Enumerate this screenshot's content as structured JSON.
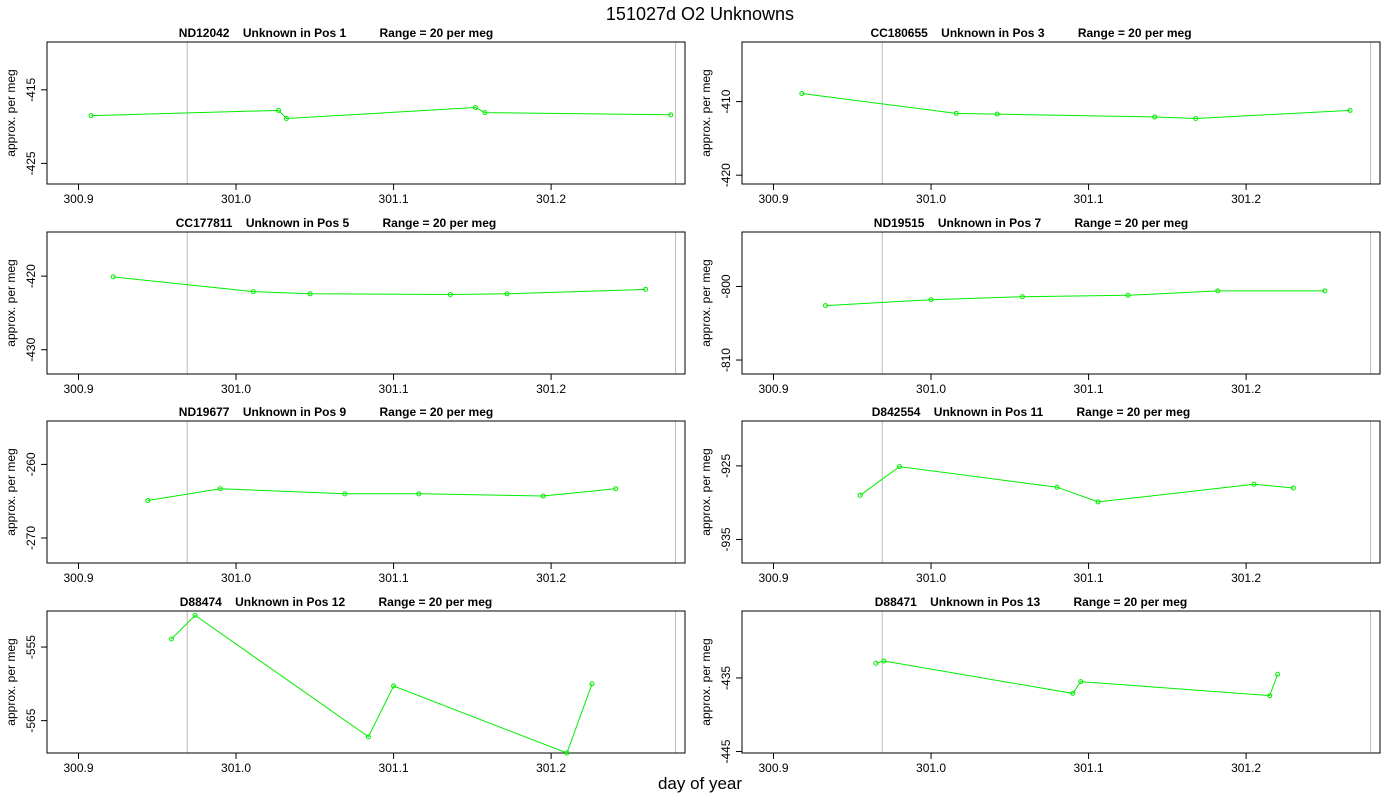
{
  "title": "151027d  O2 Unknowns",
  "xlabel": "day of year",
  "colors": {
    "series": "#00ee00",
    "vline": "#bdbdbd",
    "axis": "#000000"
  },
  "chart_data": [
    {
      "type": "line",
      "title": "ND12042    Unknown in Pos 1          Range = 20 per meg",
      "ylabel": "approx. per meg",
      "xlim": [
        300.88,
        301.285
      ],
      "ylim": [
        -427.8,
        -408.5
      ],
      "xticks": [
        "300.9",
        "301.0",
        "301.1",
        "301.2"
      ],
      "yticks": [
        "-415",
        "-425"
      ],
      "vlines": [
        300.969,
        301.279
      ],
      "x": [
        300.908,
        301.027,
        301.032,
        301.152,
        301.158,
        301.276
      ],
      "y": [
        -418.5,
        -417.8,
        -418.9,
        -417.4,
        -418.1,
        -418.4
      ]
    },
    {
      "type": "line",
      "title": "CC180655    Unknown in Pos 3          Range = 20 per meg",
      "ylabel": "approx. per meg",
      "xlim": [
        300.88,
        301.285
      ],
      "ylim": [
        -421.2,
        -401.9
      ],
      "xticks": [
        "300.9",
        "301.0",
        "301.1",
        "301.2"
      ],
      "yticks": [
        "-410",
        "-420"
      ],
      "vlines": [
        300.969,
        301.279
      ],
      "x": [
        300.918,
        301.016,
        301.042,
        301.142,
        301.168,
        301.266
      ],
      "y": [
        -408.9,
        -411.6,
        -411.7,
        -412.1,
        -412.3,
        -411.2
      ]
    },
    {
      "type": "line",
      "title": "CC177811    Unknown in Pos 5          Range = 20 per meg",
      "ylabel": "approx. per meg",
      "xlim": [
        300.88,
        301.285
      ],
      "ylim": [
        -433.3,
        -414.0
      ],
      "xticks": [
        "300.9",
        "301.0",
        "301.1",
        "301.2"
      ],
      "yticks": [
        "-420",
        "-430"
      ],
      "vlines": [
        300.969,
        301.279
      ],
      "x": [
        300.922,
        301.011,
        301.047,
        301.136,
        301.172,
        301.26
      ],
      "y": [
        -420.1,
        -422.1,
        -422.4,
        -422.5,
        -422.4,
        -421.8
      ]
    },
    {
      "type": "line",
      "title": "ND19515    Unknown in Pos 7          Range = 20 per meg",
      "ylabel": "approx. per meg",
      "xlim": [
        300.88,
        301.285
      ],
      "ylim": [
        -811.9,
        -792.6
      ],
      "xticks": [
        "300.9",
        "301.0",
        "301.1",
        "301.2"
      ],
      "yticks": [
        "-800",
        "-810"
      ],
      "vlines": [
        300.969,
        301.279
      ],
      "x": [
        300.933,
        301.0,
        301.058,
        301.125,
        301.182,
        301.25
      ],
      "y": [
        -802.6,
        -801.8,
        -801.4,
        -801.2,
        -800.6,
        -800.6
      ]
    },
    {
      "type": "line",
      "title": "ND19677    Unknown in Pos 9          Range = 20 per meg",
      "ylabel": "approx. per meg",
      "xlim": [
        300.88,
        301.285
      ],
      "ylim": [
        -273.4,
        -254.1
      ],
      "xticks": [
        "300.9",
        "301.0",
        "301.1",
        "301.2"
      ],
      "yticks": [
        "-260",
        "-270"
      ],
      "vlines": [
        300.969,
        301.279
      ],
      "x": [
        300.944,
        300.99,
        301.069,
        301.116,
        301.195,
        301.241
      ],
      "y": [
        -264.9,
        -263.3,
        -264.0,
        -264.0,
        -264.3,
        -263.3
      ]
    },
    {
      "type": "line",
      "title": "D842554    Unknown in Pos 11          Range = 20 per meg",
      "ylabel": "approx. per meg",
      "xlim": [
        300.88,
        301.285
      ],
      "ylim": [
        -938.2,
        -918.9
      ],
      "xticks": [
        "300.9",
        "301.0",
        "301.1",
        "301.2"
      ],
      "yticks": [
        "-925",
        "-935"
      ],
      "vlines": [
        300.969,
        301.279
      ],
      "x": [
        300.955,
        300.98,
        301.08,
        301.106,
        301.205,
        301.23
      ],
      "y": [
        -929.0,
        -925.1,
        -927.9,
        -929.9,
        -927.5,
        -928.0
      ]
    },
    {
      "type": "line",
      "title": "D88474    Unknown in Pos 12          Range = 20 per meg",
      "ylabel": "approx. per meg",
      "xlim": [
        300.88,
        301.285
      ],
      "ylim": [
        -569.4,
        -550.1
      ],
      "xticks": [
        "300.9",
        "301.0",
        "301.1",
        "301.2"
      ],
      "yticks": [
        "-555",
        "-565"
      ],
      "vlines": [
        300.969,
        301.279
      ],
      "x": [
        300.959,
        300.974,
        301.084,
        301.1,
        301.21,
        301.226
      ],
      "y": [
        -553.9,
        -550.7,
        -567.2,
        -560.3,
        -569.4,
        -560.0
      ]
    },
    {
      "type": "line",
      "title": "D88471    Unknown in Pos 13          Range = 20 per meg",
      "ylabel": "approx. per meg",
      "xlim": [
        300.88,
        301.285
      ],
      "ylim": [
        -445.2,
        -425.9
      ],
      "xticks": [
        "300.9",
        "301.0",
        "301.1",
        "301.2"
      ],
      "yticks": [
        "-425",
        "-435",
        "-445"
      ],
      "vlines": [
        300.969,
        301.279
      ],
      "x": [
        300.965,
        300.97,
        301.09,
        301.095,
        301.215,
        301.22
      ],
      "y": [
        -433.0,
        -432.7,
        -437.1,
        -435.5,
        -437.4,
        -434.5
      ]
    }
  ]
}
